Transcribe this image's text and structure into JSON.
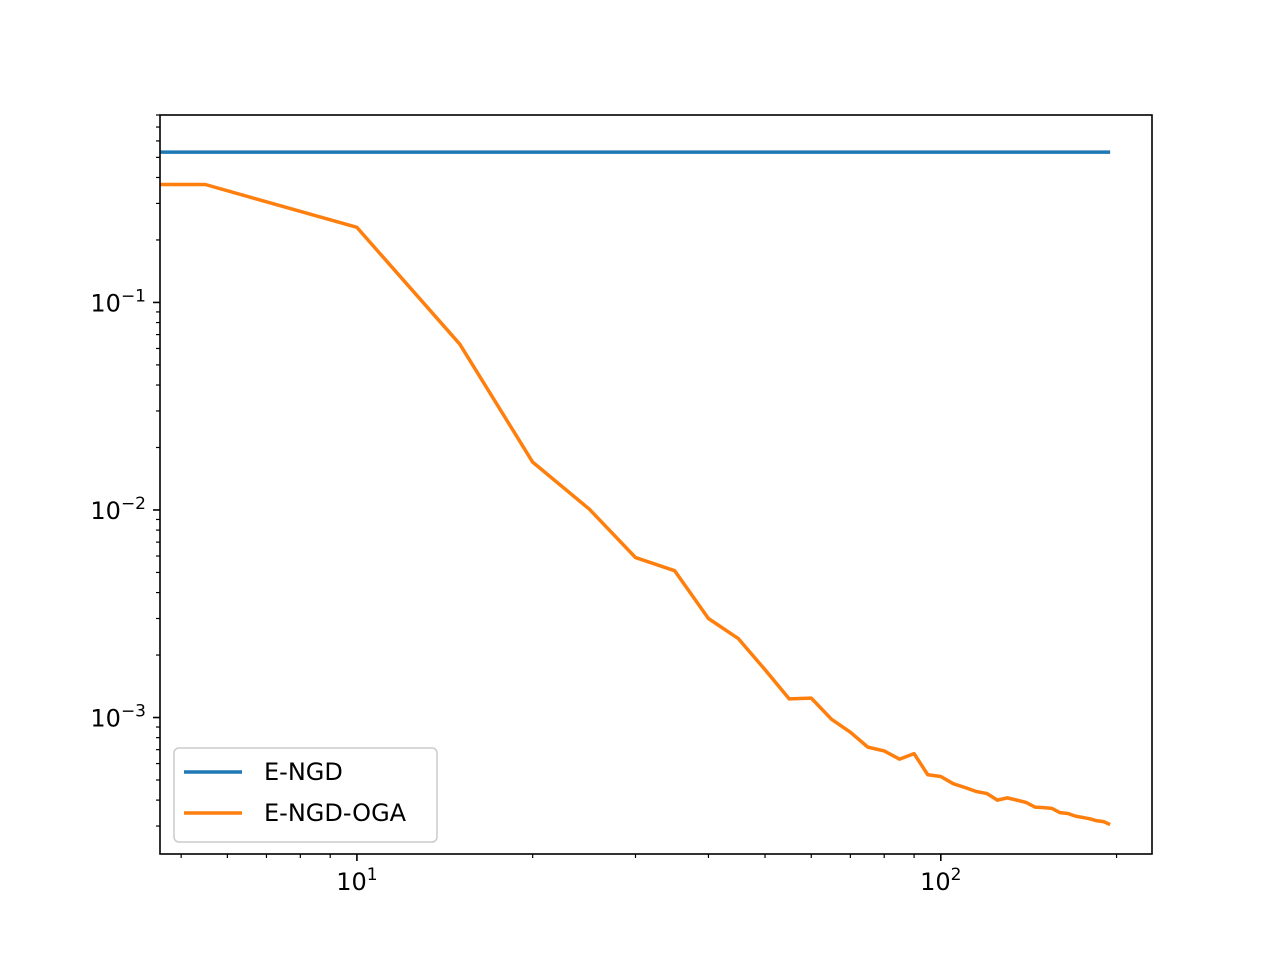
{
  "chart_data": {
    "type": "line",
    "xscale": "log",
    "yscale": "log",
    "xlim": [
      4.6,
      230
    ],
    "ylim": [
      0.00022,
      0.8
    ],
    "grid": false,
    "legend_placement": "lower-left",
    "xticks": [
      {
        "base": "10",
        "exp": "1",
        "value": 10
      },
      {
        "base": "10",
        "exp": "2",
        "value": 100
      }
    ],
    "yticks": [
      {
        "base": "10",
        "exp": "−1",
        "value": 0.1
      },
      {
        "base": "10",
        "exp": "−2",
        "value": 0.01
      },
      {
        "base": "10",
        "exp": "−3",
        "value": 0.001
      }
    ],
    "series": [
      {
        "name": "E-NGD",
        "color": "#1f77b4",
        "x": [
          4.6,
          195
        ],
        "y": [
          0.53,
          0.53
        ]
      },
      {
        "name": "E-NGD-OGA",
        "color": "#ff7f0e",
        "x": [
          4.6,
          5.5,
          10,
          15,
          20,
          25,
          30,
          35,
          40,
          45,
          50,
          55,
          60,
          65,
          70,
          75,
          80,
          85,
          90,
          95,
          100,
          105,
          110,
          115,
          120,
          125,
          130,
          135,
          140,
          145,
          150,
          155,
          160,
          165,
          170,
          175,
          180,
          185,
          190,
          195
        ],
        "y": [
          0.37,
          0.37,
          0.23,
          0.063,
          0.017,
          0.0101,
          0.0059,
          0.0051,
          0.003,
          0.0024,
          0.0017,
          0.00123,
          0.00124,
          0.00098,
          0.00085,
          0.00072,
          0.00069,
          0.00063,
          0.00067,
          0.00053,
          0.00052,
          0.00048,
          0.00046,
          0.00044,
          0.00043,
          0.0004,
          0.00041,
          0.0004,
          0.00039,
          0.00037,
          0.000368,
          0.000365,
          0.000348,
          0.000345,
          0.000335,
          0.00033,
          0.000325,
          0.000318,
          0.000315,
          0.000305
        ]
      }
    ]
  }
}
